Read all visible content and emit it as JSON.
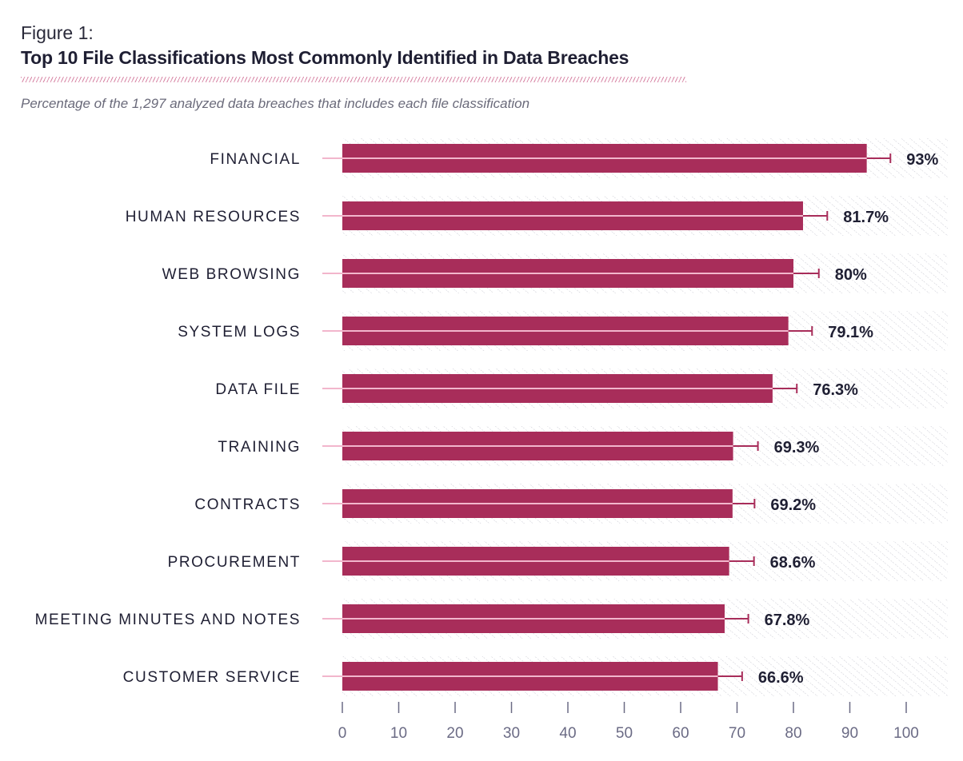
{
  "figure_label": "Figure 1:",
  "title": "Top 10 File Classifications Most Commonly Identified in Data Breaches",
  "subtitle": "Percentage of the 1,297 analyzed data breaches that includes each file classification",
  "colors": {
    "bar": "#a82d5a",
    "error_bar": "#a82d5a",
    "median_line": "#f2b6cc",
    "hatch": "#c9c9d2",
    "text": "#1f1f33",
    "tick": "#6b6b85"
  },
  "chart_data": {
    "type": "bar",
    "orientation": "horizontal",
    "title": "Top 10 File Classifications Most Commonly Identified in Data Breaches",
    "subtitle": "Percentage of the 1,297 analyzed data breaches that includes each file classification",
    "categories": [
      "FINANCIAL",
      "HUMAN RESOURCES",
      "WEB BROWSING",
      "SYSTEM LOGS",
      "DATA FILE",
      "TRAINING",
      "CONTRACTS",
      "PROCUREMENT",
      "MEETING MINUTES AND NOTES",
      "CUSTOMER SERVICE"
    ],
    "values": [
      93,
      81.7,
      80,
      79.1,
      76.3,
      69.3,
      69.2,
      68.6,
      67.8,
      66.6
    ],
    "value_labels": [
      "93%",
      "81.7%",
      "80%",
      "79.1%",
      "76.3%",
      "69.3%",
      "69.2%",
      "68.6%",
      "67.8%",
      "66.6%"
    ],
    "error_upper": [
      97.2,
      86.0,
      84.5,
      83.3,
      80.6,
      73.7,
      73.1,
      73.0,
      72.0,
      70.9
    ],
    "xlim": [
      0,
      100
    ],
    "xticks": [
      0,
      10,
      20,
      30,
      40,
      50,
      60,
      70,
      80,
      90,
      100
    ],
    "xlabel": "",
    "ylabel": "",
    "grid": false
  }
}
